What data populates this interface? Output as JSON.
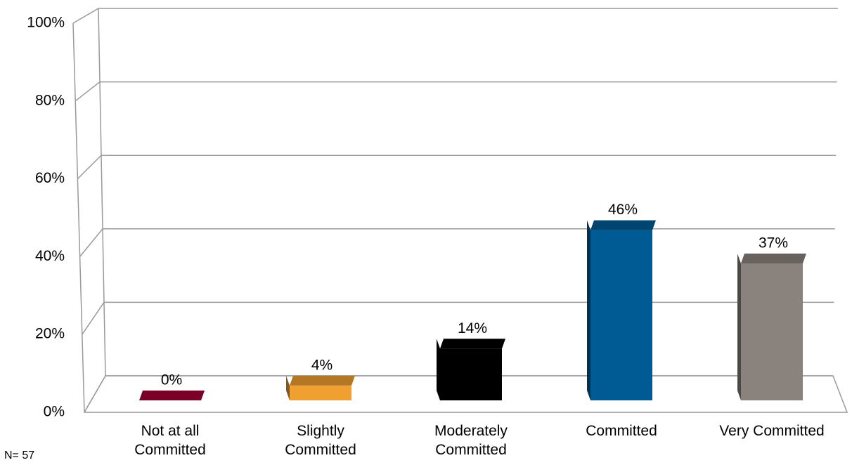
{
  "chart_data": {
    "type": "bar3d",
    "categories": [
      "Not at all\nCommitted",
      "Slightly\nCommitted",
      "Moderately\nCommitted",
      "Committed",
      "Very Committed"
    ],
    "values": [
      0,
      4,
      14,
      46,
      37
    ],
    "value_labels": [
      "0%",
      "4%",
      "14%",
      "46%",
      "37%"
    ],
    "colors": [
      "#7b0028",
      "#f0a030",
      "#000000",
      "#005a94",
      "#8a837d"
    ],
    "ylim": [
      0,
      100
    ],
    "yticks": [
      {
        "value": 0,
        "label": "0%"
      },
      {
        "value": 20,
        "label": "20%"
      },
      {
        "value": 40,
        "label": "40%"
      },
      {
        "value": 60,
        "label": "60%"
      },
      {
        "value": 80,
        "label": "80%"
      },
      {
        "value": 100,
        "label": "100%"
      }
    ],
    "grid": true,
    "note": "N= 57"
  }
}
